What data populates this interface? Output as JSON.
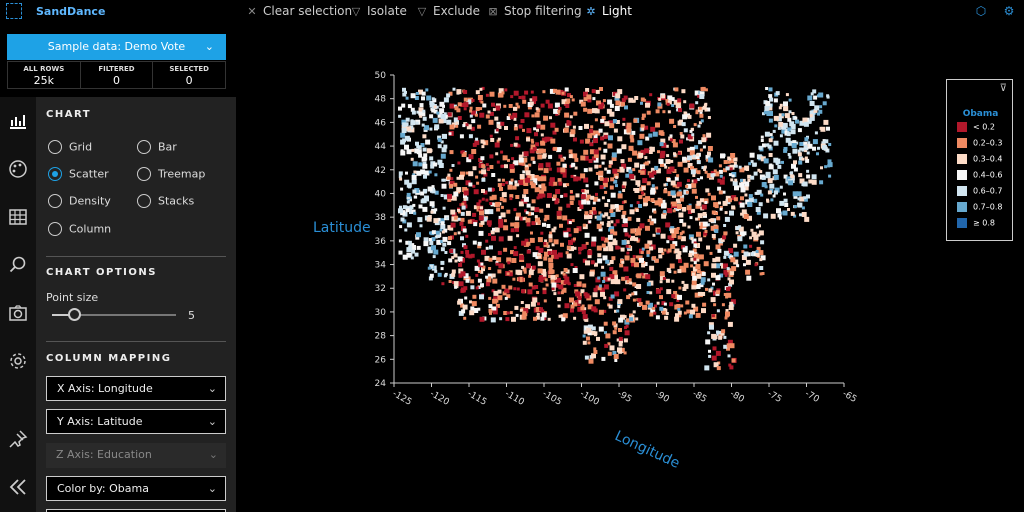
{
  "app": {
    "title": "SandDance"
  },
  "toolbar": {
    "clear_selection": "Clear selection",
    "isolate": "Isolate",
    "exclude": "Exclude",
    "stop_filtering": "Stop filtering",
    "light": "Light"
  },
  "sample": {
    "label": "Sample data: Demo Vote"
  },
  "counts": {
    "all_rows_label": "ALL ROWS",
    "all_rows_value": "25k",
    "filtered_label": "FILTERED",
    "filtered_value": "0",
    "selected_label": "SELECTED",
    "selected_value": "0"
  },
  "chart_section": {
    "title": "CHART",
    "types": [
      "Grid",
      "Bar",
      "Scatter",
      "Treemap",
      "Density",
      "Stacks",
      "Column"
    ],
    "selected": "Scatter"
  },
  "chart_options": {
    "title": "CHART OPTIONS",
    "point_size_label": "Point size",
    "point_size_value": "5",
    "point_size_fraction": 0.18
  },
  "column_mapping": {
    "title": "COLUMN MAPPING",
    "x_axis": "X Axis: Longitude",
    "y_axis": "Y Axis: Latitude",
    "z_axis": "Z Axis: Education",
    "color_by": "Color by: Obama"
  },
  "colors": {
    "accent": "#1ea2e6",
    "lt02": "#b2182b",
    "r0203": "#ef8a62",
    "r0304": "#fddbc7",
    "r0406": "#f7f7f7",
    "r0607": "#d1e5f0",
    "r0708": "#67a9cf",
    "ge08": "#2166ac"
  },
  "chart_data": {
    "type": "scatter",
    "xlabel": "Longitude",
    "ylabel": "Latitude",
    "xlim": [
      -125,
      -65
    ],
    "ylim": [
      24,
      50
    ],
    "xticks": [
      "-125",
      "-120",
      "-115",
      "-110",
      "-105",
      "-100",
      "-95",
      "-90",
      "-85",
      "-80",
      "-75",
      "-70",
      "-65"
    ],
    "yticks": [
      "24",
      "26",
      "28",
      "30",
      "32",
      "34",
      "36",
      "38",
      "40",
      "42",
      "44",
      "46",
      "48",
      "50"
    ],
    "legend": {
      "title": "Obama",
      "placement": "top-right",
      "bins": [
        "< 0.2",
        "0.2–0.3",
        "0.3–0.4",
        "0.4–0.6",
        "0.6–0.7",
        "0.7–0.8",
        "≥ 0.8"
      ]
    },
    "grid": false
  }
}
